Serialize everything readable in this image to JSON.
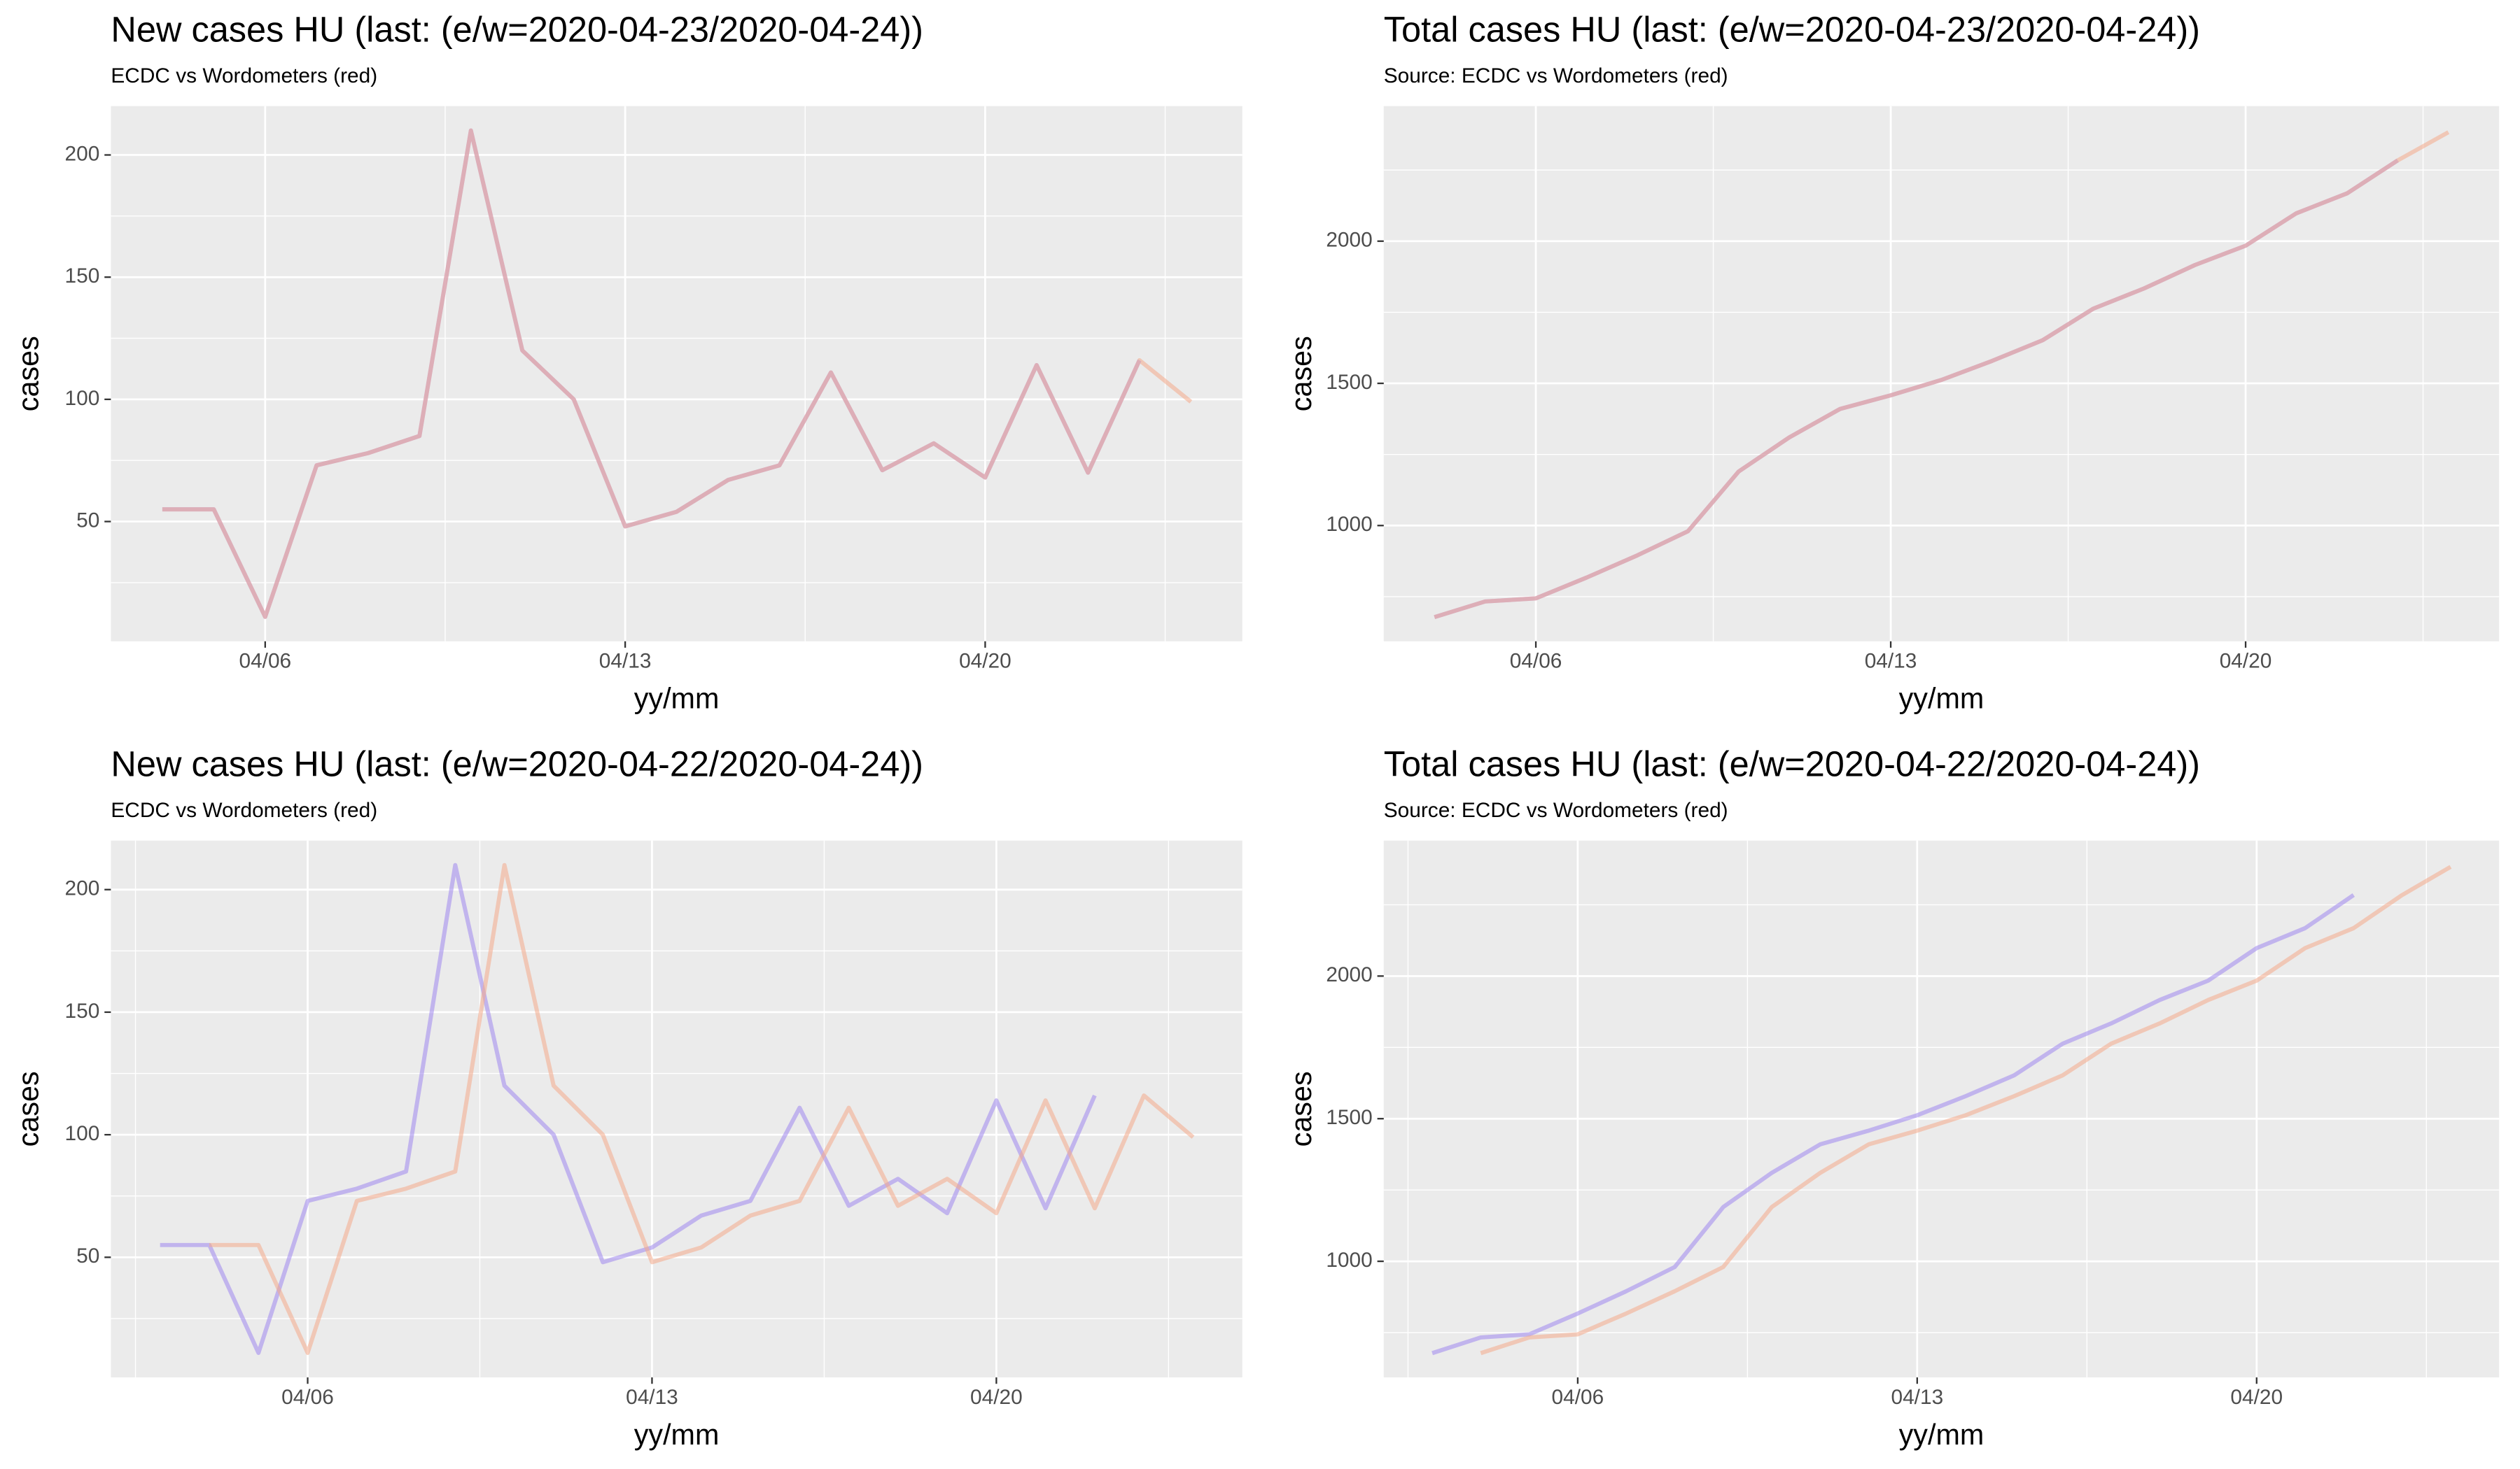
{
  "chart_data": [
    {
      "type": "line",
      "title": "New cases HU (last: (e/w=2020-04-23/2020-04-24))",
      "subtitle": "ECDC vs Wordometers (red)",
      "x_label": "yy/mm",
      "y_label": "cases",
      "xlim": [
        "04/03",
        "04/25"
      ],
      "xticks": [
        "04/06",
        "04/13",
        "04/20"
      ],
      "ylim": [
        1,
        220
      ],
      "yticks": [
        50,
        100,
        150,
        200
      ],
      "grid": true,
      "alpha": 0.55,
      "series": [
        {
          "color": "#9f86ee",
          "x": [
            "04/04",
            "04/05",
            "04/06",
            "04/07",
            "04/08",
            "04/09",
            "04/10",
            "04/11",
            "04/12",
            "04/13",
            "04/14",
            "04/15",
            "04/16",
            "04/17",
            "04/18",
            "04/19",
            "04/20",
            "04/21",
            "04/22",
            "04/23"
          ],
          "values": [
            55,
            55,
            11,
            73,
            78,
            85,
            210,
            120,
            100,
            48,
            54,
            67,
            73,
            111,
            71,
            82,
            68,
            114,
            70,
            116
          ]
        },
        {
          "color": "#f4a98a",
          "x": [
            "04/04",
            "04/05",
            "04/06",
            "04/07",
            "04/08",
            "04/09",
            "04/10",
            "04/11",
            "04/12",
            "04/13",
            "04/14",
            "04/15",
            "04/16",
            "04/17",
            "04/18",
            "04/19",
            "04/20",
            "04/21",
            "04/22",
            "04/23",
            "04/24"
          ],
          "values": [
            55,
            55,
            11,
            73,
            78,
            85,
            210,
            120,
            100,
            48,
            54,
            67,
            73,
            111,
            71,
            82,
            68,
            114,
            70,
            116,
            99
          ]
        }
      ]
    },
    {
      "type": "line",
      "title": "Total cases HU (last: (e/w=2020-04-23/2020-04-24))",
      "subtitle": "Source: ECDC vs Wordometers (red)",
      "x_label": "yy/mm",
      "y_label": "cases",
      "xlim": [
        "04/03",
        "04/25"
      ],
      "xticks": [
        "04/06",
        "04/13",
        "04/20"
      ],
      "ylim": [
        593,
        2475
      ],
      "yticks": [
        1000,
        1500,
        2000
      ],
      "grid": true,
      "alpha": 0.55,
      "series": [
        {
          "color": "#9f86ee",
          "x": [
            "04/04",
            "04/05",
            "04/06",
            "04/07",
            "04/08",
            "04/09",
            "04/10",
            "04/11",
            "04/12",
            "04/13",
            "04/14",
            "04/15",
            "04/16",
            "04/17",
            "04/18",
            "04/19",
            "04/20",
            "04/21",
            "04/22",
            "04/23"
          ],
          "values": [
            678,
            733,
            744,
            817,
            895,
            980,
            1190,
            1310,
            1410,
            1458,
            1512,
            1579,
            1652,
            1763,
            1834,
            1916,
            1984,
            2098,
            2168,
            2284
          ]
        },
        {
          "color": "#f4a98a",
          "x": [
            "04/04",
            "04/05",
            "04/06",
            "04/07",
            "04/08",
            "04/09",
            "04/10",
            "04/11",
            "04/12",
            "04/13",
            "04/14",
            "04/15",
            "04/16",
            "04/17",
            "04/18",
            "04/19",
            "04/20",
            "04/21",
            "04/22",
            "04/23",
            "04/24"
          ],
          "values": [
            678,
            733,
            744,
            817,
            895,
            980,
            1190,
            1310,
            1410,
            1458,
            1512,
            1579,
            1652,
            1763,
            1834,
            1916,
            1984,
            2098,
            2168,
            2284,
            2383
          ]
        }
      ]
    },
    {
      "type": "line",
      "title": "New cases HU (last: (e/w=2020-04-22/2020-04-24))",
      "subtitle": "ECDC vs Wordometers (red)",
      "x_label": "yy/mm",
      "y_label": "cases",
      "xlim": [
        "04/02",
        "04/25"
      ],
      "xticks": [
        "04/06",
        "04/13",
        "04/20"
      ],
      "ylim": [
        1,
        220
      ],
      "yticks": [
        50,
        100,
        150,
        200
      ],
      "grid": true,
      "alpha": 0.55,
      "series": [
        {
          "color": "#9f86ee",
          "x": [
            "04/03",
            "04/04",
            "04/05",
            "04/06",
            "04/07",
            "04/08",
            "04/09",
            "04/10",
            "04/11",
            "04/12",
            "04/13",
            "04/14",
            "04/15",
            "04/16",
            "04/17",
            "04/18",
            "04/19",
            "04/20",
            "04/21",
            "04/22"
          ],
          "values": [
            55,
            55,
            11,
            73,
            78,
            85,
            210,
            120,
            100,
            48,
            54,
            67,
            73,
            111,
            71,
            82,
            68,
            114,
            70,
            116
          ]
        },
        {
          "color": "#f4a98a",
          "x": [
            "04/04",
            "04/05",
            "04/06",
            "04/07",
            "04/08",
            "04/09",
            "04/10",
            "04/11",
            "04/12",
            "04/13",
            "04/14",
            "04/15",
            "04/16",
            "04/17",
            "04/18",
            "04/19",
            "04/20",
            "04/21",
            "04/22",
            "04/23",
            "04/24"
          ],
          "values": [
            55,
            55,
            11,
            73,
            78,
            85,
            210,
            120,
            100,
            48,
            54,
            67,
            73,
            111,
            71,
            82,
            68,
            114,
            70,
            116,
            99
          ]
        }
      ]
    },
    {
      "type": "line",
      "title": "Total cases HU (last: (e/w=2020-04-22/2020-04-24))",
      "subtitle": "Source: ECDC vs Wordometers (red)",
      "x_label": "yy/mm",
      "y_label": "cases",
      "xlim": [
        "04/02",
        "04/25"
      ],
      "xticks": [
        "04/06",
        "04/13",
        "04/20"
      ],
      "ylim": [
        593,
        2475
      ],
      "yticks": [
        1000,
        1500,
        2000
      ],
      "grid": true,
      "alpha": 0.55,
      "series": [
        {
          "color": "#9f86ee",
          "x": [
            "04/03",
            "04/04",
            "04/05",
            "04/06",
            "04/07",
            "04/08",
            "04/09",
            "04/10",
            "04/11",
            "04/12",
            "04/13",
            "04/14",
            "04/15",
            "04/16",
            "04/17",
            "04/18",
            "04/19",
            "04/20",
            "04/21",
            "04/22"
          ],
          "values": [
            678,
            733,
            744,
            817,
            895,
            980,
            1190,
            1310,
            1410,
            1458,
            1512,
            1579,
            1652,
            1763,
            1834,
            1916,
            1984,
            2098,
            2168,
            2284
          ]
        },
        {
          "color": "#f4a98a",
          "x": [
            "04/04",
            "04/05",
            "04/06",
            "04/07",
            "04/08",
            "04/09",
            "04/10",
            "04/11",
            "04/12",
            "04/13",
            "04/14",
            "04/15",
            "04/16",
            "04/17",
            "04/18",
            "04/19",
            "04/20",
            "04/21",
            "04/22",
            "04/23",
            "04/24"
          ],
          "values": [
            678,
            733,
            744,
            817,
            895,
            980,
            1190,
            1310,
            1410,
            1458,
            1512,
            1579,
            1652,
            1763,
            1834,
            1916,
            1984,
            2098,
            2168,
            2284,
            2383
          ]
        }
      ]
    }
  ]
}
